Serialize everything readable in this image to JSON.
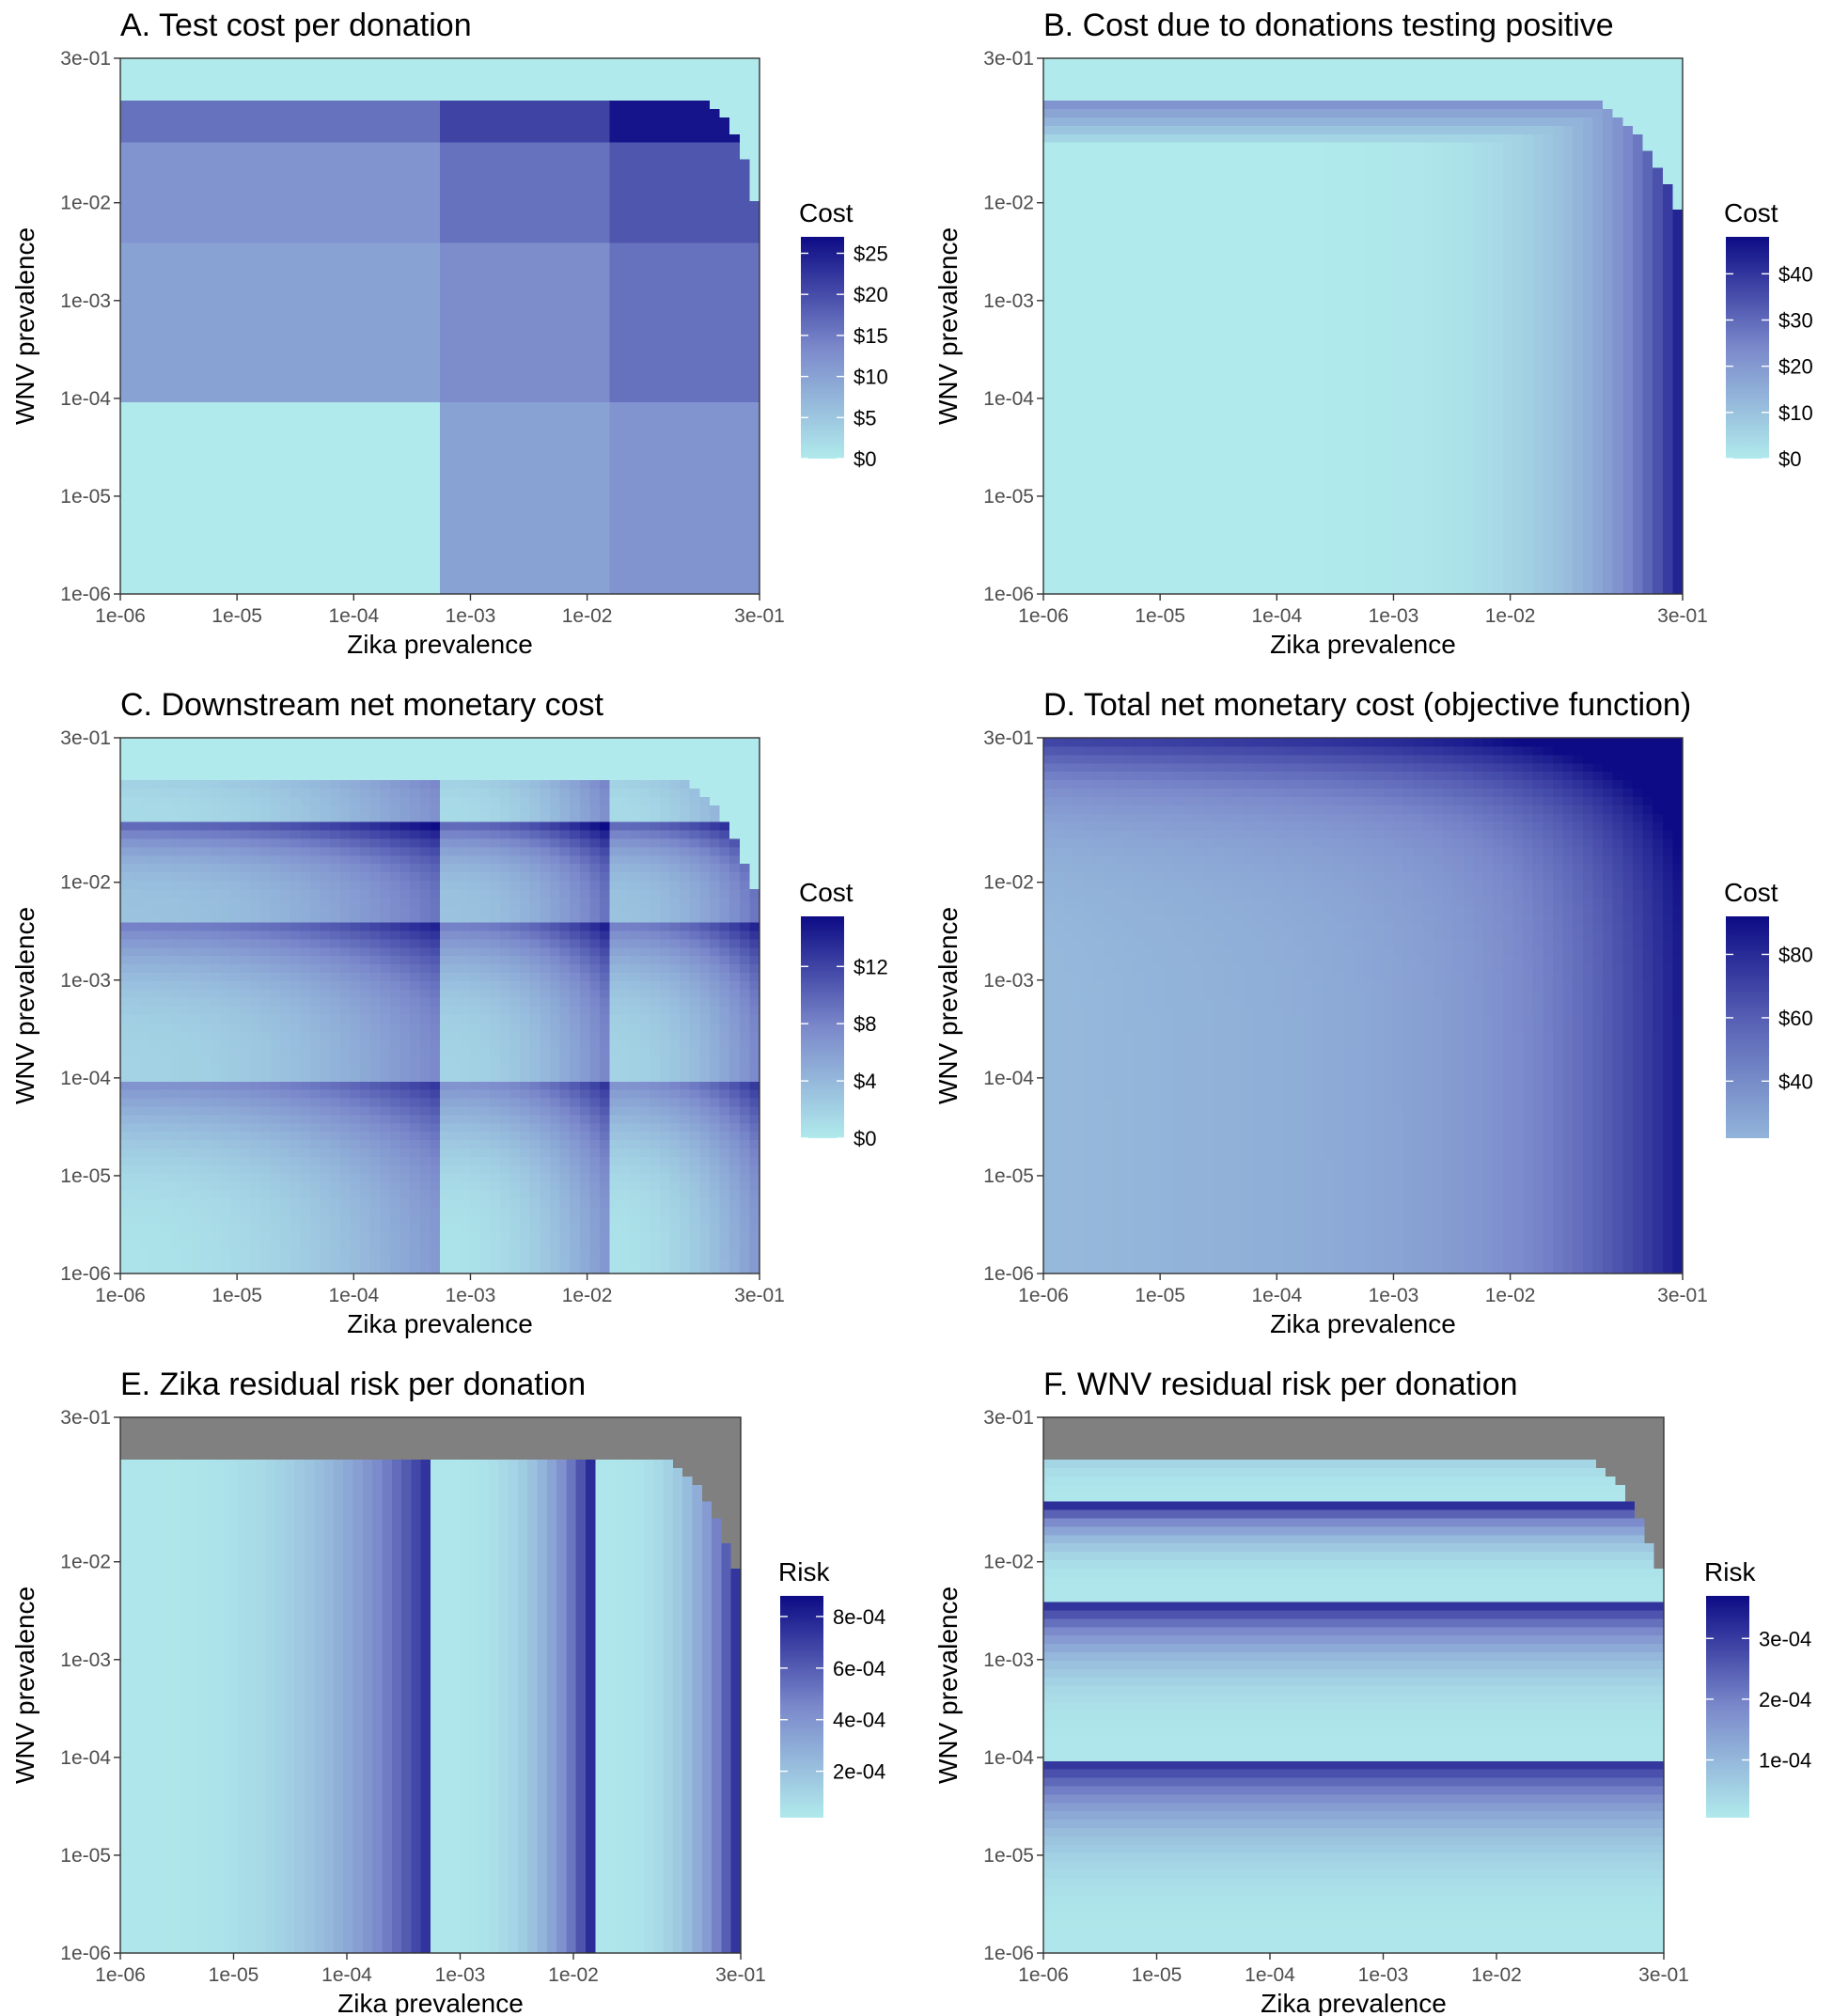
{
  "figure": {
    "panel_order": [
      "A",
      "B",
      "C",
      "D",
      "E",
      "F"
    ],
    "colors": {
      "low": "#b0eaec",
      "high": "#0d0b85",
      "missing": "#808080",
      "axis": "#333333",
      "tick_text": "#4d4d4d"
    }
  },
  "chart_data": [
    {
      "id": "A",
      "type": "heatmap",
      "title": "A. Test cost per donation",
      "xlabel": "Zika prevalence",
      "ylabel": "WNV prevalence",
      "x_scale": "log10",
      "y_scale": "log10",
      "xlim": [
        1e-06,
        0.3
      ],
      "ylim": [
        1e-06,
        0.3
      ],
      "x_ticks": [
        "1e-06",
        "1e-05",
        "1e-04",
        "1e-03",
        "1e-02",
        "3e-01"
      ],
      "y_ticks": [
        "1e-06",
        "1e-05",
        "1e-04",
        "1e-03",
        "1e-02",
        "3e-01"
      ],
      "legend": {
        "title": "Cost",
        "position": "right",
        "range": [
          0,
          27
        ],
        "ticks": [
          0,
          5,
          10,
          15,
          20,
          25
        ],
        "tick_labels": [
          "$0",
          "$5",
          "$10",
          "$15",
          "$20",
          "$25"
        ]
      },
      "zika_breaks": [
        0.0006,
        0.015
      ],
      "wnv_breaks": [
        0.0001,
        0.004,
        0.04
      ],
      "cell_values": [
        [
          0,
          10,
          12
        ],
        [
          10,
          13,
          16
        ],
        [
          12,
          16,
          19
        ],
        [
          16,
          21,
          26
        ]
      ],
      "empty_region": {
        "wnv_above": 0.12,
        "zika_shoulder": 0.07,
        "fill": "low"
      }
    },
    {
      "id": "B",
      "type": "heatmap",
      "title": "B. Cost due to donations testing positive",
      "xlabel": "Zika prevalence",
      "ylabel": "WNV prevalence",
      "x_scale": "log10",
      "y_scale": "log10",
      "xlim": [
        1e-06,
        0.3
      ],
      "ylim": [
        1e-06,
        0.3
      ],
      "x_ticks": [
        "1e-06",
        "1e-05",
        "1e-04",
        "1e-03",
        "1e-02",
        "3e-01"
      ],
      "y_ticks": [
        "1e-06",
        "1e-05",
        "1e-04",
        "1e-03",
        "1e-02",
        "3e-01"
      ],
      "legend": {
        "title": "Cost",
        "position": "right",
        "range": [
          0,
          48
        ],
        "ticks": [
          0,
          10,
          20,
          30,
          40
        ],
        "tick_labels": [
          "$0",
          "$10",
          "$20",
          "$30",
          "$40"
        ]
      },
      "zika_breaks": [],
      "wnv_breaks": [
        0.04
      ],
      "empty_region": {
        "wnv_above": 0.12,
        "zika_shoulder": 0.02,
        "fill": "low"
      }
    },
    {
      "id": "C",
      "type": "heatmap",
      "title": "C. Downstream net monetary cost",
      "xlabel": "Zika prevalence",
      "ylabel": "WNV prevalence",
      "x_scale": "log10",
      "y_scale": "log10",
      "xlim": [
        1e-06,
        0.3
      ],
      "ylim": [
        1e-06,
        0.3
      ],
      "x_ticks": [
        "1e-06",
        "1e-05",
        "1e-04",
        "1e-03",
        "1e-02",
        "3e-01"
      ],
      "y_ticks": [
        "1e-06",
        "1e-05",
        "1e-04",
        "1e-03",
        "1e-02",
        "3e-01"
      ],
      "legend": {
        "title": "Cost",
        "position": "right",
        "range": [
          0,
          15.5
        ],
        "ticks": [
          0,
          4,
          8,
          12
        ],
        "tick_labels": [
          "$0",
          "$4",
          "$8",
          "$12"
        ]
      },
      "zika_breaks": [
        0.0006,
        0.015
      ],
      "wnv_breaks": [
        0.0001,
        0.004,
        0.04
      ],
      "empty_region": {
        "wnv_above": 0.12,
        "zika_shoulder": 0.03,
        "fill": "low"
      }
    },
    {
      "id": "D",
      "type": "heatmap",
      "title": "D. Total net monetary cost (objective function)",
      "xlabel": "Zika prevalence",
      "ylabel": "WNV prevalence",
      "x_scale": "log10",
      "y_scale": "log10",
      "xlim": [
        1e-06,
        0.3
      ],
      "ylim": [
        1e-06,
        0.3
      ],
      "x_ticks": [
        "1e-06",
        "1e-05",
        "1e-04",
        "1e-03",
        "1e-02",
        "3e-01"
      ],
      "y_ticks": [
        "1e-06",
        "1e-05",
        "1e-04",
        "1e-03",
        "1e-02",
        "3e-01"
      ],
      "legend": {
        "title": "Cost",
        "position": "right",
        "range": [
          22,
          92
        ],
        "ticks": [
          40,
          60,
          80
        ],
        "tick_labels": [
          "$40",
          "$60",
          "$80"
        ]
      },
      "zika_breaks": [],
      "wnv_breaks": []
    },
    {
      "id": "E",
      "type": "heatmap",
      "title": "E. Zika residual risk per donation",
      "xlabel": "Zika prevalence",
      "ylabel": "WNV prevalence",
      "x_scale": "log10",
      "y_scale": "log10",
      "xlim": [
        1e-06,
        0.3
      ],
      "ylim": [
        1e-06,
        0.3
      ],
      "x_ticks": [
        "1e-06",
        "1e-05",
        "1e-04",
        "1e-03",
        "1e-02",
        "3e-01"
      ],
      "y_ticks": [
        "1e-06",
        "1e-05",
        "1e-04",
        "1e-03",
        "1e-02",
        "3e-01"
      ],
      "legend": {
        "title": "Risk",
        "position": "right",
        "range": [
          2e-05,
          0.00088
        ],
        "ticks": [
          0.0002,
          0.0004,
          0.0006,
          0.0008
        ],
        "tick_labels": [
          "2e-04",
          "4e-04",
          "6e-04",
          "8e-04"
        ]
      },
      "zika_breaks": [
        0.0006,
        0.015
      ],
      "wnv_breaks": [],
      "empty_region": {
        "wnv_above": 0.12,
        "zika_shoulder": 0.03,
        "fill": "missing"
      }
    },
    {
      "id": "F",
      "type": "heatmap",
      "title": "F. WNV residual risk per donation",
      "xlabel": "Zika prevalence",
      "ylabel": "WNV prevalence",
      "x_scale": "log10",
      "y_scale": "log10",
      "xlim": [
        1e-06,
        0.3
      ],
      "ylim": [
        1e-06,
        0.3
      ],
      "x_ticks": [
        "1e-06",
        "1e-05",
        "1e-04",
        "1e-03",
        "1e-02",
        "3e-01"
      ],
      "y_ticks": [
        "1e-06",
        "1e-05",
        "1e-04",
        "1e-03",
        "1e-02",
        "3e-01"
      ],
      "legend": {
        "title": "Risk",
        "position": "right",
        "range": [
          5e-06,
          0.00037
        ],
        "ticks": [
          0.0001,
          0.0002,
          0.0003
        ],
        "tick_labels": [
          "1e-04",
          "2e-04",
          "3e-04"
        ]
      },
      "zika_breaks": [],
      "wnv_breaks": [
        0.0001,
        0.004,
        0.04
      ],
      "empty_region": {
        "wnv_above": 0.12,
        "zika_shoulder": 0.03,
        "fill": "missing"
      }
    }
  ]
}
